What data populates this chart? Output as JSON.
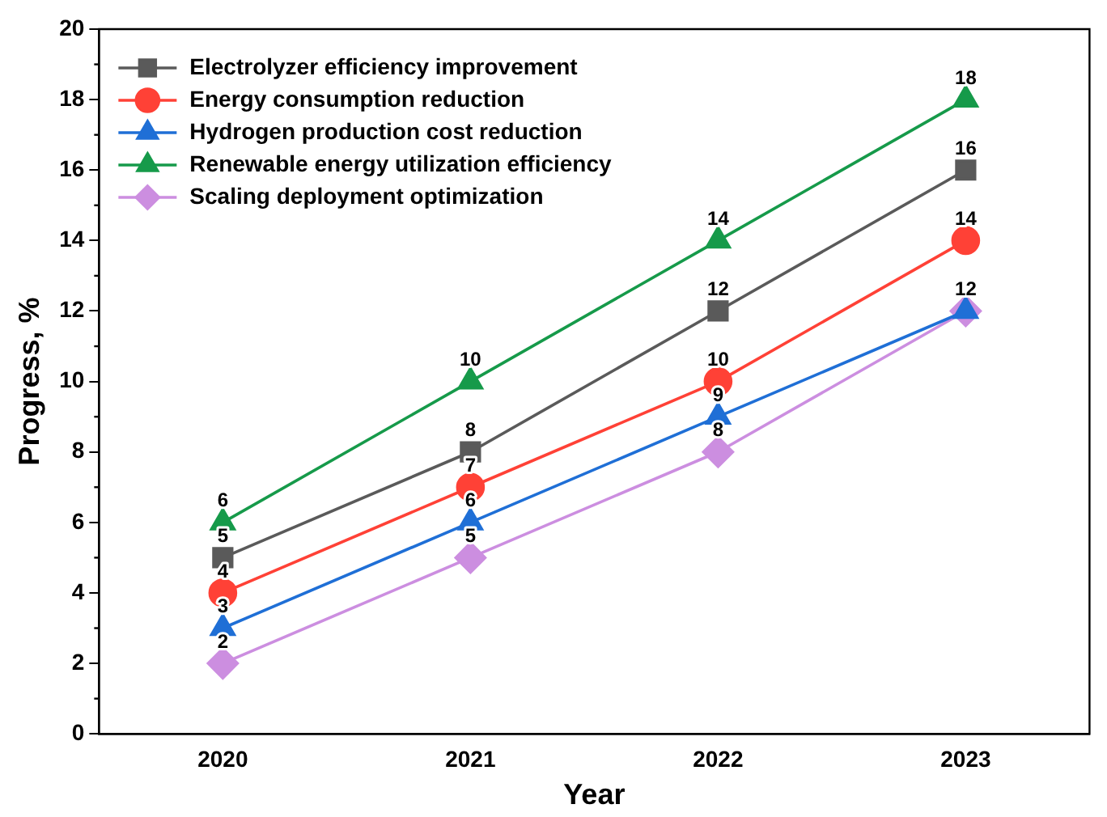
{
  "chart_data": {
    "type": "line",
    "xlabel": "Year",
    "ylabel": "Progress, %",
    "categories": [
      "2020",
      "2021",
      "2022",
      "2023"
    ],
    "series": [
      {
        "name": "Electrolyzer efficiency improvement",
        "color": "#5a5a5a",
        "marker": "square",
        "values": [
          5,
          8,
          12,
          16
        ],
        "value_labels": [
          "5",
          "8",
          "12",
          "16"
        ]
      },
      {
        "name": "Energy consumption reduction",
        "color": "#ff4136",
        "marker": "circle",
        "values": [
          4,
          7,
          10,
          14
        ],
        "value_labels": [
          "4",
          "7",
          "10",
          "14"
        ]
      },
      {
        "name": "Hydrogen production cost reduction",
        "color": "#1f6fd6",
        "marker": "triangle",
        "values": [
          3,
          6,
          9,
          12
        ],
        "value_labels": [
          "3",
          "6",
          "9",
          null
        ]
      },
      {
        "name": "Renewable energy utilization efficiency",
        "color": "#169a4a",
        "marker": "triangle",
        "values": [
          6,
          10,
          14,
          18
        ],
        "value_labels": [
          "6",
          "10",
          "14",
          "18"
        ]
      },
      {
        "name": "Scaling deployment optimization",
        "color": "#cc8ee0",
        "marker": "diamond",
        "values": [
          2,
          5,
          8,
          12
        ],
        "value_labels": [
          "2",
          "5",
          "8",
          "12"
        ]
      }
    ],
    "ylim": [
      0,
      20
    ],
    "yticks": [
      0,
      2,
      4,
      6,
      8,
      10,
      12,
      14,
      16,
      18,
      20
    ],
    "grid": false,
    "legend": "top left",
    "line_style": "solid"
  }
}
